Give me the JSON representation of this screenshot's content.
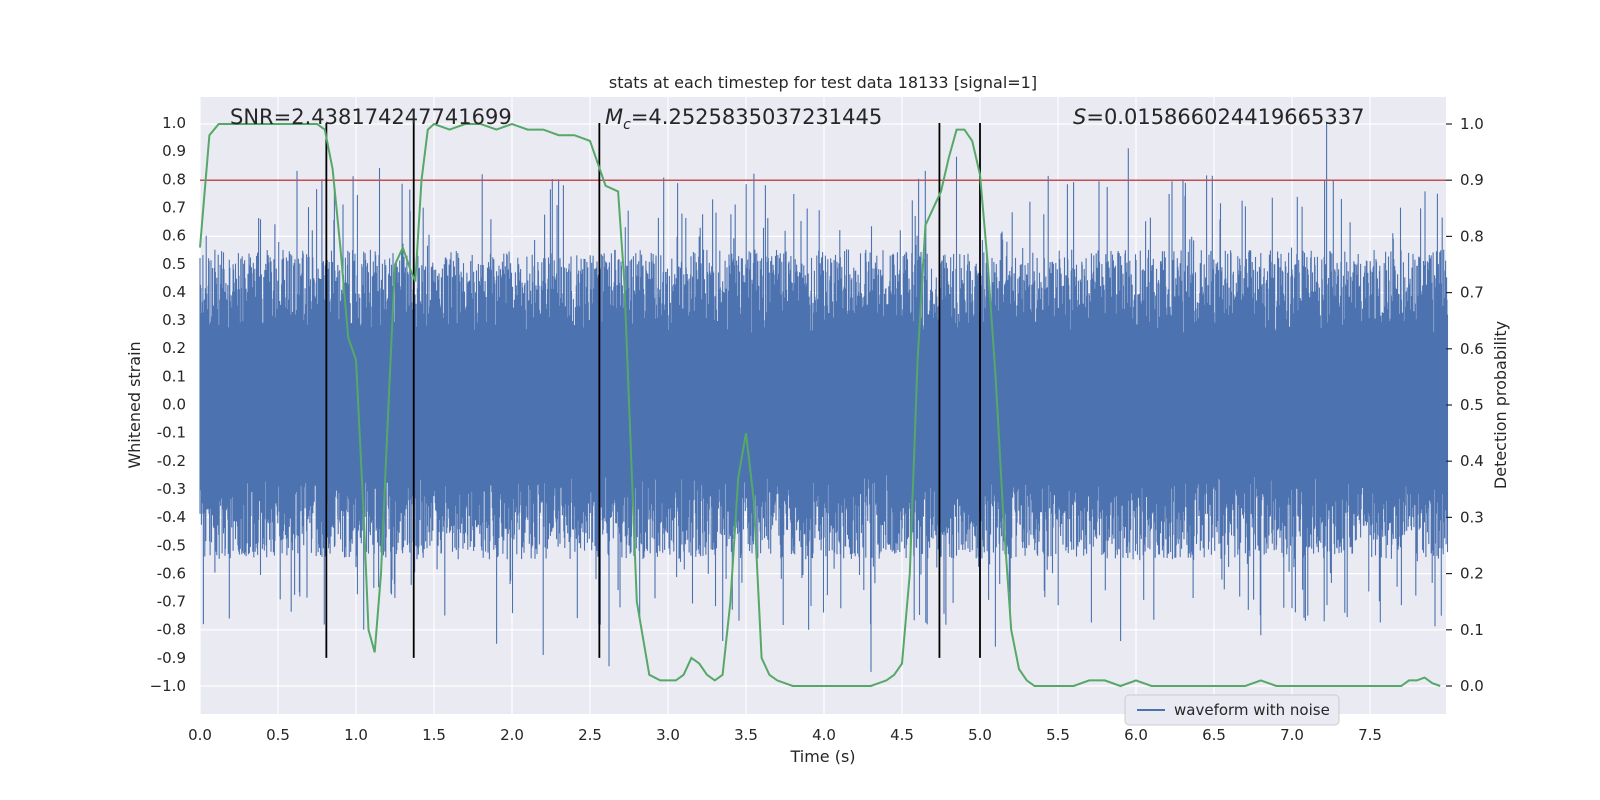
{
  "chart_data": {
    "type": "line",
    "title": "stats at each timestep for test data 18133 [signal=1]",
    "xlabel": "Time (s)",
    "ylabel": "Whitened strain",
    "y2label": "Detection probability",
    "xlim": [
      0.0,
      8.0
    ],
    "ylim": [
      -1.05,
      1.05
    ],
    "y2lim": [
      -0.05,
      1.05
    ],
    "x_ticks": [
      0.0,
      0.5,
      1.0,
      1.5,
      2.0,
      2.5,
      3.0,
      3.5,
      4.0,
      4.5,
      5.0,
      5.5,
      6.0,
      6.5,
      7.0,
      7.5
    ],
    "x_tick_labels": [
      "0.0",
      "0.5",
      "1.0",
      "1.5",
      "2.0",
      "2.5",
      "3.0",
      "3.5",
      "4.0",
      "4.5",
      "5.0",
      "5.5",
      "6.0",
      "6.5",
      "7.0",
      "7.5"
    ],
    "y_ticks": [
      1.0,
      0.9,
      0.8,
      0.7,
      0.6,
      0.5,
      0.4,
      0.3,
      0.2,
      0.1,
      0.0,
      -0.1,
      -0.2,
      -0.3,
      -0.4,
      -0.5,
      -0.6,
      -0.7,
      -0.8,
      -0.9,
      -1.0
    ],
    "y_tick_labels": [
      "1.0",
      "0.9",
      "0.8",
      "0.7",
      "0.6",
      "0.5",
      "0.4",
      "0.3",
      "0.2",
      "0.1",
      "0.0",
      "-0.1",
      "-0.2",
      "-0.3",
      "-0.4",
      "-0.5",
      "-0.6",
      "-0.7",
      "-0.8",
      "-0.9",
      "−1.0"
    ],
    "y2_ticks": [
      1.0,
      0.9,
      0.8,
      0.7,
      0.6,
      0.5,
      0.4,
      0.3,
      0.2,
      0.1,
      0.0
    ],
    "y2_tick_labels": [
      "1.0",
      "0.9",
      "0.8",
      "0.7",
      "0.6",
      "0.5",
      "0.4",
      "0.3",
      "0.2",
      "0.1",
      "0.0"
    ],
    "grid": true,
    "legend": {
      "placement": "lower-right",
      "entries": [
        "waveform with noise"
      ]
    },
    "annotations": {
      "snr": "SNR=2.438174247741699",
      "mc_symbol": "M",
      "mc_sub": "c",
      "mc_value": "=4.2525835037231445",
      "s_symbol": "S",
      "s_value": "=0.015866024419665337"
    },
    "threshold": {
      "axis": "right",
      "value": 0.9,
      "color": "#c44e52"
    },
    "vertical_lines": [
      0.81,
      1.37,
      2.56,
      4.74,
      5.0
    ],
    "vertical_line_range": [
      -0.9,
      1.0
    ],
    "series": [
      {
        "name": "waveform with noise",
        "axis": "left",
        "color": "#4c72b0",
        "kind": "noisy-waveform",
        "envelope": {
          "typical_min": -0.55,
          "typical_max": 0.55,
          "spike_min": -0.95,
          "spike_max": 1.0
        },
        "spikes": [
          {
            "x": 0.62,
            "y": 0.83
          },
          {
            "x": 0.78,
            "y": 0.8
          },
          {
            "x": 1.15,
            "y": 0.84
          },
          {
            "x": 1.9,
            "y": 0.97
          },
          {
            "x": 2.3,
            "y": 0.8
          },
          {
            "x": 3.55,
            "y": 0.82
          },
          {
            "x": 4.65,
            "y": 0.83
          },
          {
            "x": 4.85,
            "y": 0.88
          },
          {
            "x": 5.95,
            "y": 0.91
          },
          {
            "x": 7.22,
            "y": 1.0
          },
          {
            "x": 6.3,
            "y": 0.8
          },
          {
            "x": 5.6,
            "y": 0.79
          },
          {
            "x": 0.02,
            "y": -0.78
          },
          {
            "x": 1.05,
            "y": -0.8
          },
          {
            "x": 1.9,
            "y": -0.85
          },
          {
            "x": 2.2,
            "y": -0.89
          },
          {
            "x": 2.62,
            "y": -0.93
          },
          {
            "x": 3.35,
            "y": -0.84
          },
          {
            "x": 4.3,
            "y": -0.95
          },
          {
            "x": 5.1,
            "y": -0.86
          },
          {
            "x": 5.9,
            "y": -0.84
          },
          {
            "x": 6.8,
            "y": -0.82
          },
          {
            "x": 3.9,
            "y": -0.8
          },
          {
            "x": 7.1,
            "y": -0.75
          }
        ]
      },
      {
        "name": "Detection probability",
        "axis": "right",
        "color": "#55a868",
        "x": [
          0.0,
          0.06,
          0.12,
          0.2,
          0.3,
          0.4,
          0.5,
          0.6,
          0.7,
          0.75,
          0.8,
          0.85,
          0.9,
          0.95,
          1.0,
          1.05,
          1.08,
          1.12,
          1.16,
          1.2,
          1.25,
          1.3,
          1.35,
          1.38,
          1.42,
          1.46,
          1.5,
          1.6,
          1.7,
          1.8,
          1.9,
          2.0,
          2.1,
          2.2,
          2.3,
          2.4,
          2.5,
          2.55,
          2.6,
          2.68,
          2.72,
          2.8,
          2.88,
          2.95,
          3.0,
          3.05,
          3.1,
          3.15,
          3.2,
          3.25,
          3.3,
          3.35,
          3.4,
          3.45,
          3.5,
          3.55,
          3.6,
          3.65,
          3.7,
          3.8,
          3.9,
          4.0,
          4.1,
          4.2,
          4.3,
          4.4,
          4.45,
          4.5,
          4.55,
          4.6,
          4.65,
          4.7,
          4.75,
          4.8,
          4.85,
          4.9,
          4.95,
          5.0,
          5.05,
          5.1,
          5.15,
          5.2,
          5.25,
          5.3,
          5.35,
          5.4,
          5.5,
          5.6,
          5.7,
          5.8,
          5.9,
          6.0,
          6.1,
          6.2,
          6.3,
          6.4,
          6.5,
          6.6,
          6.7,
          6.8,
          6.9,
          7.0,
          7.1,
          7.2,
          7.3,
          7.4,
          7.5,
          7.6,
          7.7,
          7.75,
          7.8,
          7.85,
          7.9,
          7.95
        ],
        "values": [
          0.78,
          0.98,
          1.0,
          1.0,
          1.0,
          1.0,
          1.0,
          1.0,
          1.0,
          1.0,
          0.99,
          0.92,
          0.78,
          0.62,
          0.58,
          0.3,
          0.1,
          0.06,
          0.2,
          0.45,
          0.75,
          0.78,
          0.74,
          0.72,
          0.9,
          0.99,
          1.0,
          0.99,
          1.0,
          1.0,
          0.99,
          1.0,
          0.99,
          0.99,
          0.98,
          0.98,
          0.97,
          0.93,
          0.89,
          0.88,
          0.72,
          0.15,
          0.02,
          0.01,
          0.01,
          0.01,
          0.02,
          0.05,
          0.04,
          0.02,
          0.01,
          0.02,
          0.15,
          0.37,
          0.45,
          0.33,
          0.05,
          0.02,
          0.01,
          0.0,
          0.0,
          0.0,
          0.0,
          0.0,
          0.0,
          0.01,
          0.02,
          0.04,
          0.2,
          0.58,
          0.82,
          0.85,
          0.88,
          0.94,
          0.99,
          0.99,
          0.97,
          0.91,
          0.75,
          0.55,
          0.3,
          0.1,
          0.03,
          0.01,
          0.0,
          0.0,
          0.0,
          0.0,
          0.01,
          0.01,
          0.0,
          0.01,
          0.0,
          0.0,
          0.0,
          0.0,
          0.0,
          0.0,
          0.0,
          0.01,
          0.0,
          0.0,
          0.0,
          0.0,
          0.0,
          0.0,
          0.0,
          0.0,
          0.0,
          0.01,
          0.01,
          0.015,
          0.005,
          0.0
        ]
      }
    ]
  }
}
